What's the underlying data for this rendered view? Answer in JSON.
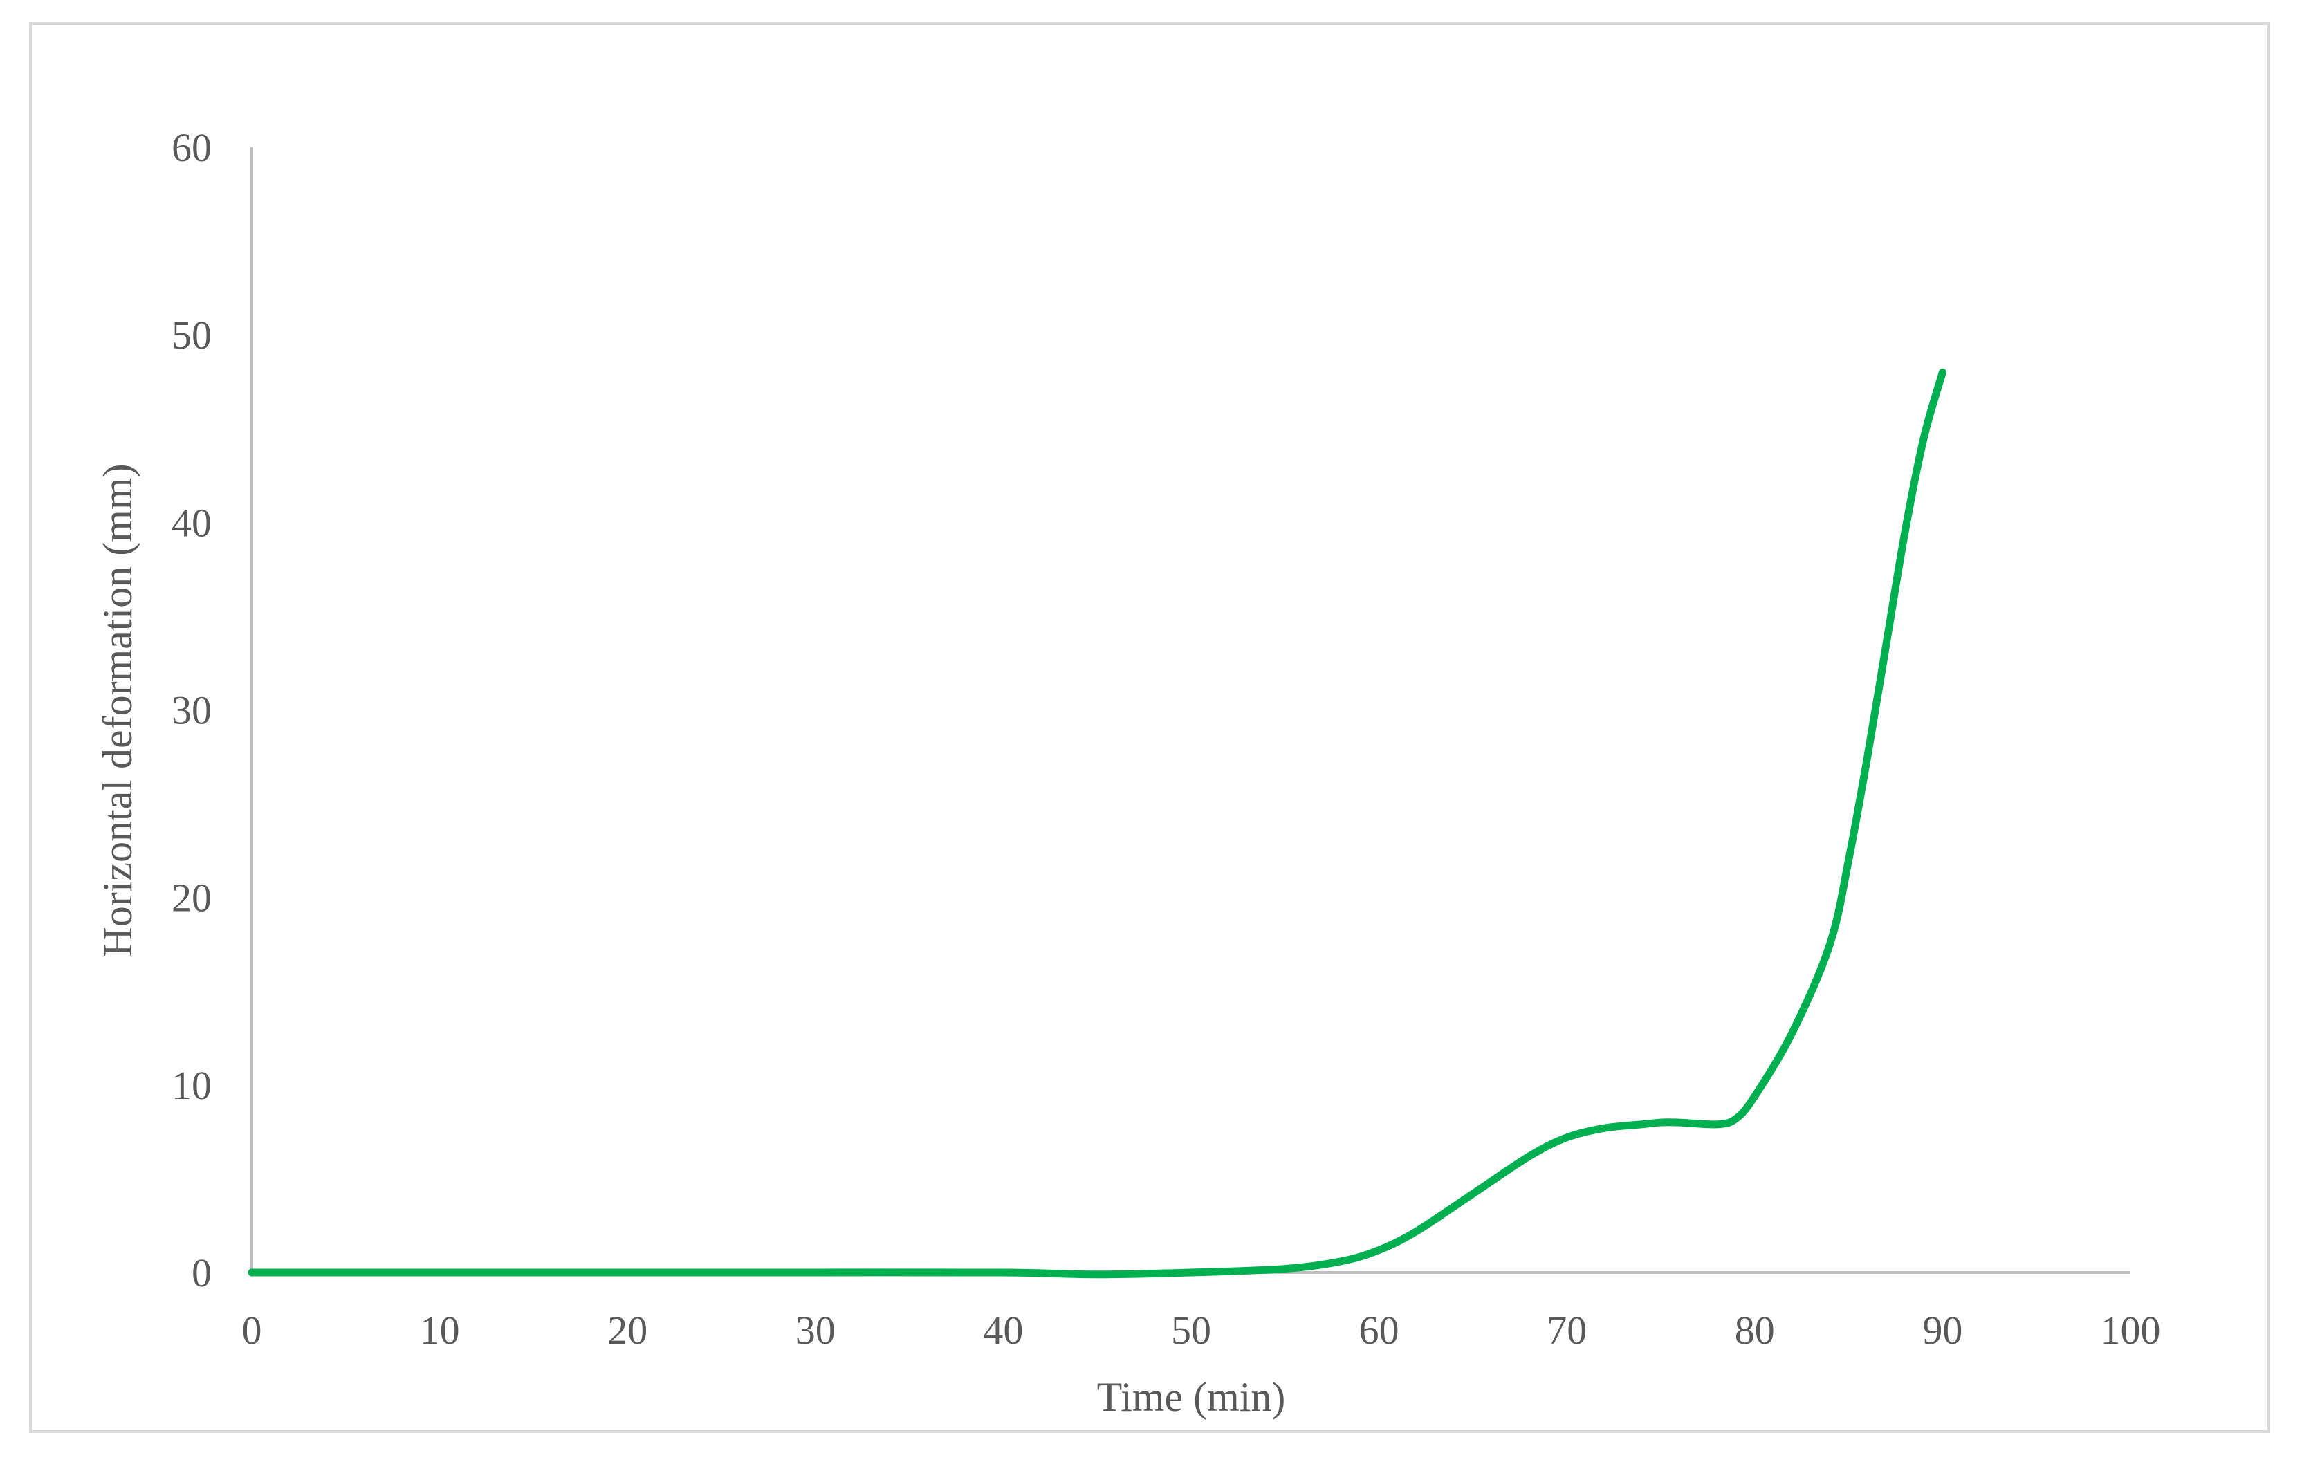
{
  "chart_data": {
    "type": "line",
    "title": "",
    "xlabel": "Time (min)",
    "ylabel": "Horizontal deformation (mm)",
    "xlim": [
      0,
      100
    ],
    "ylim": [
      0,
      60
    ],
    "xticks": [
      0,
      10,
      20,
      30,
      40,
      50,
      60,
      70,
      80,
      90,
      100
    ],
    "yticks": [
      0,
      10,
      20,
      30,
      40,
      50,
      60
    ],
    "grid": false,
    "legend": "none",
    "series": [
      {
        "color": "#00b050",
        "x": [
          0,
          10,
          20,
          30,
          40,
          45,
          50,
          55,
          58,
          60,
          62,
          65,
          68,
          70,
          72,
          74,
          75,
          76,
          78,
          79,
          80,
          82,
          84,
          85,
          86,
          87,
          88,
          89,
          90
        ],
        "y": [
          0,
          0,
          0,
          0,
          0,
          -0.1,
          0,
          0.2,
          0.6,
          1.2,
          2.2,
          4.2,
          6.2,
          7.2,
          7.7,
          7.9,
          8.0,
          8.0,
          7.9,
          8.2,
          9.4,
          12.8,
          17.5,
          22.0,
          27.5,
          33.5,
          39.5,
          44.5,
          48.0
        ]
      }
    ]
  }
}
